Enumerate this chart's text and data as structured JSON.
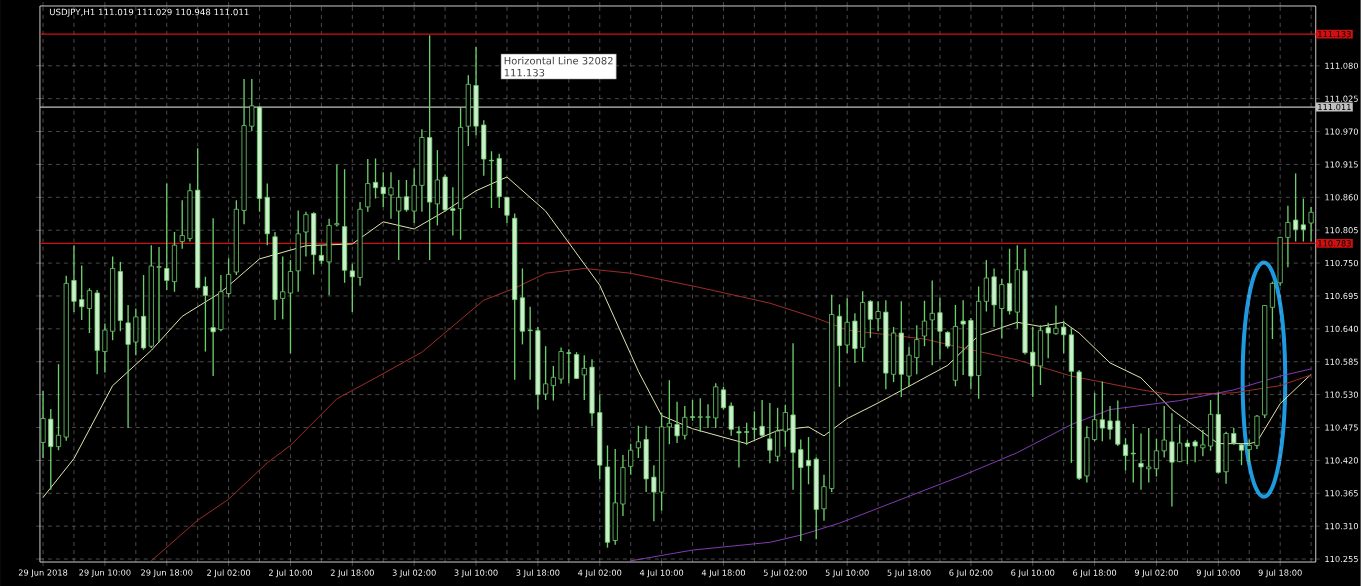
{
  "chart_data": {
    "type": "candlestick",
    "title": "USDJPY,H1  111.019 111.029 110.948 111.011",
    "categories": [
      "29 Jun 2018",
      null,
      null,
      null,
      null,
      null,
      null,
      null,
      "29 Jun 10:00",
      null,
      null,
      null,
      null,
      null,
      null,
      null,
      "29 Jun 18:00",
      null,
      null,
      null,
      null,
      null,
      null,
      null,
      "2 Jul 02:00",
      null,
      null,
      null,
      null,
      null,
      null,
      null,
      "2 Jul 10:00",
      null,
      null,
      null,
      null,
      null,
      null,
      null,
      "2 Jul 18:00",
      null,
      null,
      null,
      null,
      null,
      null,
      null,
      "3 Jul 02:00",
      null,
      null,
      null,
      null,
      null,
      null,
      null,
      "3 Jul 10:00",
      null,
      null,
      null,
      null,
      null,
      null,
      null,
      "3 Jul 18:00",
      null,
      null,
      null,
      null,
      null,
      null,
      null,
      "4 Jul 02:00",
      null,
      null,
      null,
      null,
      null,
      null,
      null,
      "4 Jul 10:00",
      null,
      null,
      null,
      null,
      null,
      null,
      null,
      "4 Jul 18:00",
      null,
      null,
      null,
      null,
      null,
      null,
      null,
      "5 Jul 02:00",
      null,
      null,
      null,
      null,
      null,
      null,
      null,
      "5 Jul 10:00",
      null,
      null,
      null,
      null,
      null,
      null,
      null,
      "5 Jul 18:00",
      null,
      null,
      null,
      null,
      null,
      null,
      null,
      "6 Jul 02:00",
      null,
      null,
      null,
      null,
      null,
      null,
      null,
      "6 Jul 10:00",
      null,
      null,
      null,
      null,
      null,
      null,
      null,
      "6 Jul 18:00",
      null,
      null,
      null,
      null,
      null,
      null,
      null,
      "9 Jul 02:00",
      null,
      null,
      null,
      null,
      null,
      null,
      null,
      "9 Jul 10:00",
      null,
      null,
      null,
      null,
      null,
      null,
      null,
      "9 Jul 18:00",
      null,
      null,
      null,
      null
    ],
    "color": "#6ccf6c",
    "ohlc": [
      [
        110.45,
        110.536,
        110.424,
        110.49
      ],
      [
        110.489,
        110.506,
        110.371,
        110.443
      ],
      [
        110.443,
        110.581,
        110.437,
        110.462
      ],
      [
        110.459,
        110.729,
        110.453,
        110.716
      ],
      [
        110.721,
        110.78,
        110.668,
        110.686
      ],
      [
        110.689,
        110.746,
        110.655,
        110.677
      ],
      [
        110.674,
        110.708,
        110.633,
        110.704
      ],
      [
        110.7,
        110.705,
        110.564,
        110.604
      ],
      [
        110.602,
        110.649,
        110.567,
        110.638
      ],
      [
        110.636,
        110.761,
        110.621,
        110.741
      ],
      [
        110.736,
        110.752,
        110.636,
        110.654
      ],
      [
        110.65,
        110.68,
        110.474,
        110.614
      ],
      [
        110.618,
        110.674,
        110.596,
        110.66
      ],
      [
        110.661,
        110.73,
        110.605,
        110.608
      ],
      [
        110.611,
        110.78,
        110.608,
        110.745
      ],
      [
        110.743,
        110.777,
        110.617,
        110.744
      ],
      [
        110.741,
        110.883,
        110.705,
        110.721
      ],
      [
        110.719,
        110.802,
        110.702,
        110.78
      ],
      [
        110.786,
        110.855,
        110.774,
        110.796
      ],
      [
        110.791,
        110.883,
        110.786,
        110.871
      ],
      [
        110.872,
        110.942,
        110.708,
        110.709
      ],
      [
        110.711,
        110.727,
        110.602,
        110.696
      ],
      [
        110.642,
        110.825,
        110.561,
        110.635
      ],
      [
        110.639,
        110.73,
        110.636,
        110.702
      ],
      [
        110.699,
        110.758,
        110.693,
        110.731
      ],
      [
        110.735,
        110.855,
        110.73,
        110.84
      ],
      [
        110.838,
        111.058,
        110.815,
        110.98
      ],
      [
        110.979,
        111.058,
        110.971,
        111.013
      ],
      [
        111.011,
        111.012,
        110.836,
        110.858
      ],
      [
        110.86,
        110.883,
        110.78,
        110.799
      ],
      [
        110.794,
        110.802,
        110.655,
        110.689
      ],
      [
        110.691,
        110.761,
        110.656,
        110.702
      ],
      [
        110.7,
        110.755,
        110.599,
        110.736
      ],
      [
        110.737,
        110.838,
        110.702,
        110.799
      ],
      [
        110.802,
        110.836,
        110.761,
        110.831
      ],
      [
        110.833,
        110.835,
        110.731,
        110.764
      ],
      [
        110.763,
        110.78,
        110.749,
        110.754
      ],
      [
        110.752,
        110.824,
        110.696,
        110.813
      ],
      [
        110.814,
        110.915,
        110.811,
        110.816
      ],
      [
        110.811,
        110.907,
        110.717,
        110.738
      ],
      [
        110.737,
        110.748,
        110.668,
        110.727
      ],
      [
        110.726,
        110.852,
        110.712,
        110.84
      ],
      [
        110.844,
        110.924,
        110.836,
        110.883
      ],
      [
        110.885,
        110.925,
        110.858,
        110.876
      ],
      [
        110.877,
        110.902,
        110.844,
        110.866
      ],
      [
        110.864,
        110.902,
        110.824,
        110.876
      ],
      [
        110.837,
        110.889,
        110.755,
        110.86
      ],
      [
        110.861,
        110.889,
        110.836,
        110.839
      ],
      [
        110.837,
        110.908,
        110.817,
        110.88
      ],
      [
        110.88,
        110.974,
        110.836,
        110.96
      ],
      [
        110.96,
        111.131,
        110.755,
        110.852
      ],
      [
        110.849,
        110.939,
        110.813,
        110.889
      ],
      [
        110.894,
        110.898,
        110.836,
        110.839
      ],
      [
        110.841,
        110.877,
        110.796,
        110.838
      ],
      [
        110.841,
        111.011,
        110.789,
        110.977
      ],
      [
        110.979,
        111.064,
        110.946,
        111.049
      ],
      [
        111.047,
        111.112,
        110.964,
        110.979
      ],
      [
        110.981,
        110.989,
        110.896,
        110.924
      ],
      [
        110.922,
        110.937,
        110.842,
        110.921
      ],
      [
        110.925,
        110.933,
        110.842,
        110.861
      ],
      [
        110.86,
        110.861,
        110.817,
        110.83
      ],
      [
        110.825,
        110.833,
        110.555,
        110.689
      ],
      [
        110.692,
        110.741,
        110.614,
        110.636
      ],
      [
        110.638,
        110.677,
        110.555,
        110.637
      ],
      [
        110.637,
        110.643,
        110.505,
        110.53
      ],
      [
        110.531,
        110.611,
        110.521,
        110.548
      ],
      [
        110.545,
        110.578,
        110.52,
        110.559
      ],
      [
        110.556,
        110.609,
        110.548,
        110.602
      ],
      [
        110.6,
        110.606,
        110.549,
        110.599
      ],
      [
        110.597,
        110.601,
        110.556,
        110.557
      ],
      [
        110.563,
        110.596,
        110.521,
        110.574
      ],
      [
        110.576,
        110.589,
        110.477,
        110.499
      ],
      [
        110.5,
        110.53,
        110.389,
        110.412
      ],
      [
        110.409,
        110.445,
        110.274,
        110.283
      ],
      [
        110.286,
        110.439,
        110.279,
        110.349
      ],
      [
        110.347,
        110.429,
        110.327,
        110.408
      ],
      [
        110.41,
        110.448,
        110.396,
        110.437
      ],
      [
        110.441,
        110.478,
        110.424,
        110.451
      ],
      [
        110.455,
        110.478,
        110.367,
        110.389
      ],
      [
        110.392,
        110.412,
        110.318,
        110.367
      ],
      [
        110.367,
        110.5,
        110.336,
        110.476
      ],
      [
        110.476,
        110.554,
        110.447,
        110.482
      ],
      [
        110.48,
        110.518,
        110.449,
        110.461
      ],
      [
        110.462,
        110.511,
        110.455,
        110.492
      ],
      [
        110.493,
        110.521,
        110.486,
        110.492
      ],
      [
        110.492,
        110.524,
        110.468,
        110.493
      ],
      [
        110.492,
        110.514,
        110.474,
        110.493
      ],
      [
        110.491,
        110.549,
        110.474,
        110.543
      ],
      [
        110.538,
        110.543,
        110.505,
        110.508
      ],
      [
        110.511,
        110.517,
        110.461,
        110.472
      ],
      [
        110.468,
        110.477,
        110.408,
        110.466
      ],
      [
        110.468,
        110.483,
        110.446,
        110.467
      ],
      [
        110.473,
        110.502,
        110.455,
        110.472
      ],
      [
        110.477,
        110.521,
        110.459,
        110.462
      ],
      [
        110.456,
        110.516,
        110.415,
        110.437
      ],
      [
        110.427,
        110.508,
        110.418,
        110.469
      ],
      [
        110.469,
        110.513,
        110.443,
        110.5
      ],
      [
        110.496,
        110.616,
        110.371,
        110.433
      ],
      [
        110.438,
        110.455,
        110.285,
        110.408
      ],
      [
        110.42,
        110.459,
        110.38,
        110.411
      ],
      [
        110.422,
        110.425,
        110.288,
        110.338
      ],
      [
        110.339,
        110.396,
        110.319,
        110.376
      ],
      [
        110.373,
        110.697,
        110.367,
        110.664
      ],
      [
        110.661,
        110.681,
        110.543,
        110.612
      ],
      [
        110.613,
        110.691,
        110.599,
        110.651
      ],
      [
        110.653,
        110.666,
        110.583,
        110.607
      ],
      [
        110.609,
        110.703,
        110.585,
        110.684
      ],
      [
        110.686,
        110.688,
        110.625,
        110.656
      ],
      [
        110.657,
        110.686,
        110.636,
        110.669
      ],
      [
        110.668,
        110.688,
        110.539,
        110.566
      ],
      [
        110.564,
        110.643,
        110.551,
        110.633
      ],
      [
        110.633,
        110.686,
        110.526,
        110.564
      ],
      [
        110.561,
        110.61,
        110.544,
        110.596
      ],
      [
        110.592,
        110.646,
        110.564,
        110.622
      ],
      [
        110.628,
        110.687,
        110.611,
        110.653
      ],
      [
        110.655,
        110.721,
        110.579,
        110.666
      ],
      [
        110.667,
        110.692,
        110.589,
        110.636
      ],
      [
        110.634,
        110.636,
        110.607,
        110.611
      ],
      [
        110.554,
        110.68,
        110.544,
        110.644
      ],
      [
        110.653,
        110.688,
        110.563,
        110.648
      ],
      [
        110.654,
        110.658,
        110.539,
        110.561
      ],
      [
        110.562,
        110.711,
        110.523,
        110.686
      ],
      [
        110.686,
        110.755,
        110.669,
        110.725
      ],
      [
        110.727,
        110.741,
        110.643,
        110.68
      ],
      [
        110.674,
        110.724,
        110.624,
        110.714
      ],
      [
        110.716,
        110.774,
        110.664,
        110.67
      ],
      [
        110.668,
        110.78,
        110.64,
        110.739
      ],
      [
        110.737,
        110.774,
        110.597,
        110.6
      ],
      [
        110.601,
        110.643,
        110.526,
        110.578
      ],
      [
        110.578,
        110.646,
        110.546,
        110.637
      ],
      [
        110.642,
        110.65,
        110.591,
        110.633
      ],
      [
        110.632,
        110.679,
        110.63,
        110.641
      ],
      [
        110.643,
        110.653,
        110.599,
        110.63
      ],
      [
        110.63,
        110.641,
        110.416,
        110.569
      ],
      [
        110.568,
        110.571,
        110.387,
        110.39
      ],
      [
        110.394,
        110.477,
        110.383,
        110.458
      ],
      [
        110.455,
        110.533,
        110.452,
        110.488
      ],
      [
        110.488,
        110.552,
        110.452,
        110.474
      ],
      [
        110.486,
        110.511,
        110.455,
        110.472
      ],
      [
        110.486,
        110.52,
        110.444,
        110.447
      ],
      [
        110.446,
        110.457,
        110.403,
        110.428
      ],
      [
        110.432,
        110.481,
        110.383,
        110.431
      ],
      [
        110.415,
        110.465,
        110.371,
        110.409
      ],
      [
        110.406,
        110.474,
        110.383,
        110.409
      ],
      [
        110.406,
        110.456,
        110.393,
        110.436
      ],
      [
        110.436,
        110.511,
        110.425,
        110.454
      ],
      [
        110.451,
        110.499,
        110.343,
        110.417
      ],
      [
        110.418,
        110.48,
        110.417,
        110.449
      ],
      [
        110.449,
        110.454,
        110.414,
        110.443
      ],
      [
        110.451,
        110.454,
        110.417,
        110.444
      ],
      [
        110.441,
        110.471,
        110.427,
        110.446
      ],
      [
        110.444,
        110.521,
        110.436,
        110.497
      ],
      [
        110.497,
        110.533,
        110.398,
        110.4
      ],
      [
        110.401,
        110.468,
        110.381,
        110.465
      ],
      [
        110.465,
        110.474,
        110.446,
        110.449
      ],
      [
        110.446,
        110.449,
        110.412,
        110.437
      ],
      [
        110.438,
        110.455,
        110.417,
        110.445
      ],
      [
        110.445,
        110.496,
        110.439,
        110.494
      ],
      [
        110.496,
        110.68,
        110.491,
        110.679
      ],
      [
        110.676,
        110.719,
        110.623,
        110.716
      ],
      [
        110.717,
        110.794,
        110.712,
        110.793
      ],
      [
        110.793,
        110.846,
        110.743,
        110.818
      ],
      [
        110.822,
        110.9,
        110.786,
        110.806
      ],
      [
        110.814,
        110.858,
        110.786,
        110.806
      ],
      [
        110.817,
        110.844,
        110.786,
        110.835
      ]
    ],
    "series": [
      {
        "type": "line",
        "color": "#f2f2b8",
        "values": [
          110.358,
          null,
          null,
          null,
          110.423,
          null,
          null,
          null,
          null,
          110.545,
          null,
          null,
          null,
          null,
          110.604,
          null,
          null,
          null,
          110.661,
          null,
          null,
          null,
          null,
          110.701,
          null,
          null,
          null,
          null,
          110.757,
          null,
          null,
          null,
          null,
          null,
          110.779,
          null,
          null,
          null,
          null,
          null,
          110.782,
          null,
          null,
          null,
          110.819,
          null,
          null,
          null,
          110.807,
          null,
          null,
          null,
          110.837,
          null,
          null,
          null,
          110.871,
          null,
          null,
          null,
          110.894,
          null,
          null,
          null,
          null,
          110.837,
          null,
          null,
          null,
          null,
          null,
          null,
          110.713,
          null,
          null,
          null,
          null,
          110.569,
          null,
          null,
          110.495,
          null,
          null,
          null,
          110.473,
          null,
          null,
          null,
          null,
          null,
          null,
          110.448,
          null,
          null,
          null,
          110.47,
          null,
          null,
          null,
          110.476,
          null,
          110.461,
          null,
          null,
          110.49,
          null,
          null,
          null,
          110.516,
          null,
          null,
          null,
          null,
          110.551,
          null,
          null,
          null,
          110.579,
          null,
          null,
          null,
          110.629,
          null,
          null,
          null,
          null,
          110.651,
          null,
          null,
          110.644,
          null,
          null,
          110.651,
          null,
          110.633,
          null,
          null,
          null,
          110.583,
          null,
          null,
          null,
          110.558,
          null,
          null,
          null,
          110.505,
          null,
          null,
          null,
          null,
          null,
          110.448,
          null,
          null,
          null,
          110.448,
          110.451,
          null,
          null,
          110.515,
          null,
          null,
          null,
          110.564
        ]
      },
      {
        "type": "line",
        "color": "#a8322d",
        "values": [
          null,
          null,
          null,
          null,
          null,
          null,
          null,
          null,
          null,
          null,
          null,
          null,
          null,
          null,
          110.252,
          null,
          null,
          null,
          null,
          null,
          110.32,
          null,
          null,
          null,
          110.355,
          null,
          null,
          null,
          null,
          110.416,
          null,
          null,
          110.445,
          null,
          null,
          null,
          null,
          null,
          110.523,
          null,
          null,
          null,
          null,
          110.558,
          null,
          null,
          null,
          null,
          null,
          110.601,
          null,
          null,
          null,
          null,
          null,
          null,
          null,
          110.688,
          null,
          null,
          null,
          110.708,
          null,
          null,
          null,
          110.733,
          null,
          null,
          null,
          null,
          110.741,
          null,
          null,
          null,
          null,
          null,
          110.733,
          null,
          null,
          null,
          null,
          null,
          null,
          null,
          null,
          110.709,
          null,
          null,
          null,
          null,
          null,
          null,
          null,
          null,
          110.683,
          null,
          null,
          null,
          null,
          null,
          110.658,
          null,
          null,
          null,
          110.638,
          null,
          null,
          null,
          null,
          null,
          null,
          null,
          null,
          null,
          110.623,
          null,
          null,
          null,
          null,
          110.608,
          null,
          null,
          null,
          null,
          null,
          null,
          110.588,
          null,
          null,
          null,
          null,
          null,
          null,
          110.561,
          null,
          null,
          null,
          null,
          null,
          null,
          null,
          null,
          110.538,
          null,
          null,
          null,
          110.53,
          null,
          null,
          null,
          null,
          null,
          null,
          null,
          110.533,
          null,
          null,
          null,
          null,
          null,
          110.545,
          null,
          null,
          null,
          110.563
        ]
      },
      {
        "type": "line",
        "color": "#8a3fc0",
        "values": [
          null,
          null,
          null,
          null,
          null,
          null,
          null,
          null,
          null,
          null,
          null,
          null,
          null,
          null,
          null,
          null,
          null,
          null,
          null,
          null,
          null,
          null,
          null,
          null,
          null,
          null,
          null,
          null,
          null,
          null,
          null,
          null,
          null,
          null,
          null,
          null,
          null,
          null,
          null,
          null,
          null,
          null,
          null,
          null,
          null,
          null,
          null,
          null,
          null,
          null,
          null,
          null,
          null,
          null,
          null,
          null,
          null,
          null,
          null,
          null,
          null,
          null,
          null,
          null,
          null,
          null,
          null,
          null,
          null,
          null,
          null,
          null,
          null,
          null,
          null,
          null,
          110.252,
          null,
          null,
          null,
          null,
          null,
          null,
          null,
          110.27,
          null,
          null,
          null,
          null,
          null,
          null,
          null,
          null,
          null,
          110.283,
          null,
          null,
          null,
          110.295,
          null,
          null,
          null,
          null,
          110.315,
          null,
          null,
          null,
          null,
          110.34,
          null,
          null,
          null,
          null,
          null,
          110.37,
          null,
          null,
          null,
          null,
          110.395,
          null,
          null,
          null,
          null,
          null,
          null,
          110.433,
          null,
          null,
          null,
          null,
          null,
          null,
          110.48,
          null,
          null,
          null,
          null,
          110.505,
          null,
          null,
          null,
          null,
          null,
          null,
          null,
          null,
          110.52,
          null,
          null,
          null,
          null,
          null,
          null,
          110.538,
          null,
          null,
          null,
          null,
          null,
          110.561,
          null,
          null,
          null,
          110.573
        ]
      }
    ],
    "ylim": [
      110.25,
      111.18
    ],
    "yticks": [
      110.255,
      {
        "value": 110.31,
        "label": "110.310"
      },
      110.365,
      {
        "value": 110.42,
        "label": "110.420"
      },
      110.475,
      {
        "value": 110.53,
        "label": "110.530"
      },
      110.585,
      {
        "value": 110.64,
        "label": "110.640"
      },
      110.695,
      {
        "value": 110.75,
        "label": "110.750"
      },
      110.805,
      {
        "value": 110.86,
        "label": "110.860"
      },
      110.915,
      {
        "value": 110.97,
        "label": "110.970"
      },
      111.025,
      {
        "value": 111.08,
        "label": "111.080"
      }
    ],
    "ref_lines": [
      {
        "axis": "y",
        "value": 111.133,
        "label": "111.133",
        "color": "#d01010"
      },
      {
        "axis": "y",
        "value": 111.011,
        "label": "111.011",
        "color": "#c0c0c0"
      },
      {
        "axis": "y",
        "value": 110.783,
        "label": "110.783",
        "color": "#d01010"
      }
    ],
    "annotations": [
      "Horizontal Line 32082",
      "111.133"
    ],
    "grid": true
  }
}
